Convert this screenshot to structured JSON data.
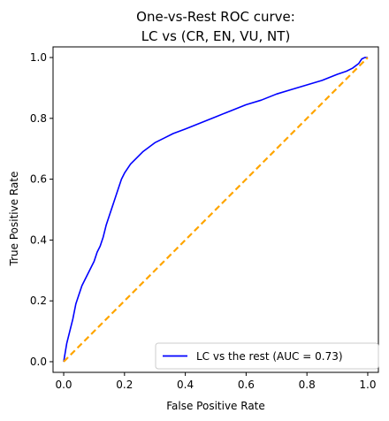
{
  "chart_data": {
    "type": "line",
    "title_lines": [
      "One-vs-Rest ROC curve:",
      "LC vs (CR, EN, VU, NT)"
    ],
    "xlabel": "False Positive Rate",
    "ylabel": "True Positive Rate",
    "xlim": [
      -0.035,
      1.035
    ],
    "ylim": [
      -0.035,
      1.035
    ],
    "xticks": [
      0.0,
      0.2,
      0.4,
      0.6,
      0.8,
      1.0
    ],
    "xtick_labels": [
      "0.0",
      "0.2",
      "0.4",
      "0.6",
      "0.8",
      "1.0"
    ],
    "yticks": [
      0.0,
      0.2,
      0.4,
      0.6,
      0.8,
      1.0
    ],
    "ytick_labels": [
      "0.0",
      "0.2",
      "0.4",
      "0.6",
      "0.8",
      "1.0"
    ],
    "grid": false,
    "legend_position": "lower-right",
    "series": [
      {
        "name": "LC vs the rest (AUC = 0.73)",
        "color": "#0000ff",
        "style": "solid",
        "x": [
          0.0,
          0.005,
          0.01,
          0.015,
          0.02,
          0.03,
          0.04,
          0.05,
          0.06,
          0.07,
          0.08,
          0.09,
          0.1,
          0.11,
          0.12,
          0.13,
          0.14,
          0.15,
          0.16,
          0.17,
          0.18,
          0.19,
          0.2,
          0.21,
          0.22,
          0.24,
          0.26,
          0.28,
          0.3,
          0.33,
          0.36,
          0.4,
          0.45,
          0.5,
          0.55,
          0.6,
          0.65,
          0.7,
          0.75,
          0.8,
          0.85,
          0.9,
          0.93,
          0.95,
          0.97,
          0.98,
          0.99,
          1.0
        ],
        "y": [
          0.0,
          0.03,
          0.06,
          0.08,
          0.1,
          0.14,
          0.19,
          0.22,
          0.25,
          0.27,
          0.29,
          0.31,
          0.33,
          0.36,
          0.38,
          0.41,
          0.45,
          0.48,
          0.51,
          0.54,
          0.57,
          0.6,
          0.62,
          0.635,
          0.65,
          0.67,
          0.69,
          0.705,
          0.72,
          0.735,
          0.75,
          0.765,
          0.785,
          0.805,
          0.825,
          0.845,
          0.86,
          0.88,
          0.895,
          0.91,
          0.925,
          0.945,
          0.955,
          0.965,
          0.98,
          0.995,
          1.0,
          1.0
        ]
      },
      {
        "name": "",
        "color": "#ffa500",
        "style": "dashed",
        "x": [
          0.0,
          1.0
        ],
        "y": [
          0.0,
          1.0
        ]
      }
    ]
  }
}
